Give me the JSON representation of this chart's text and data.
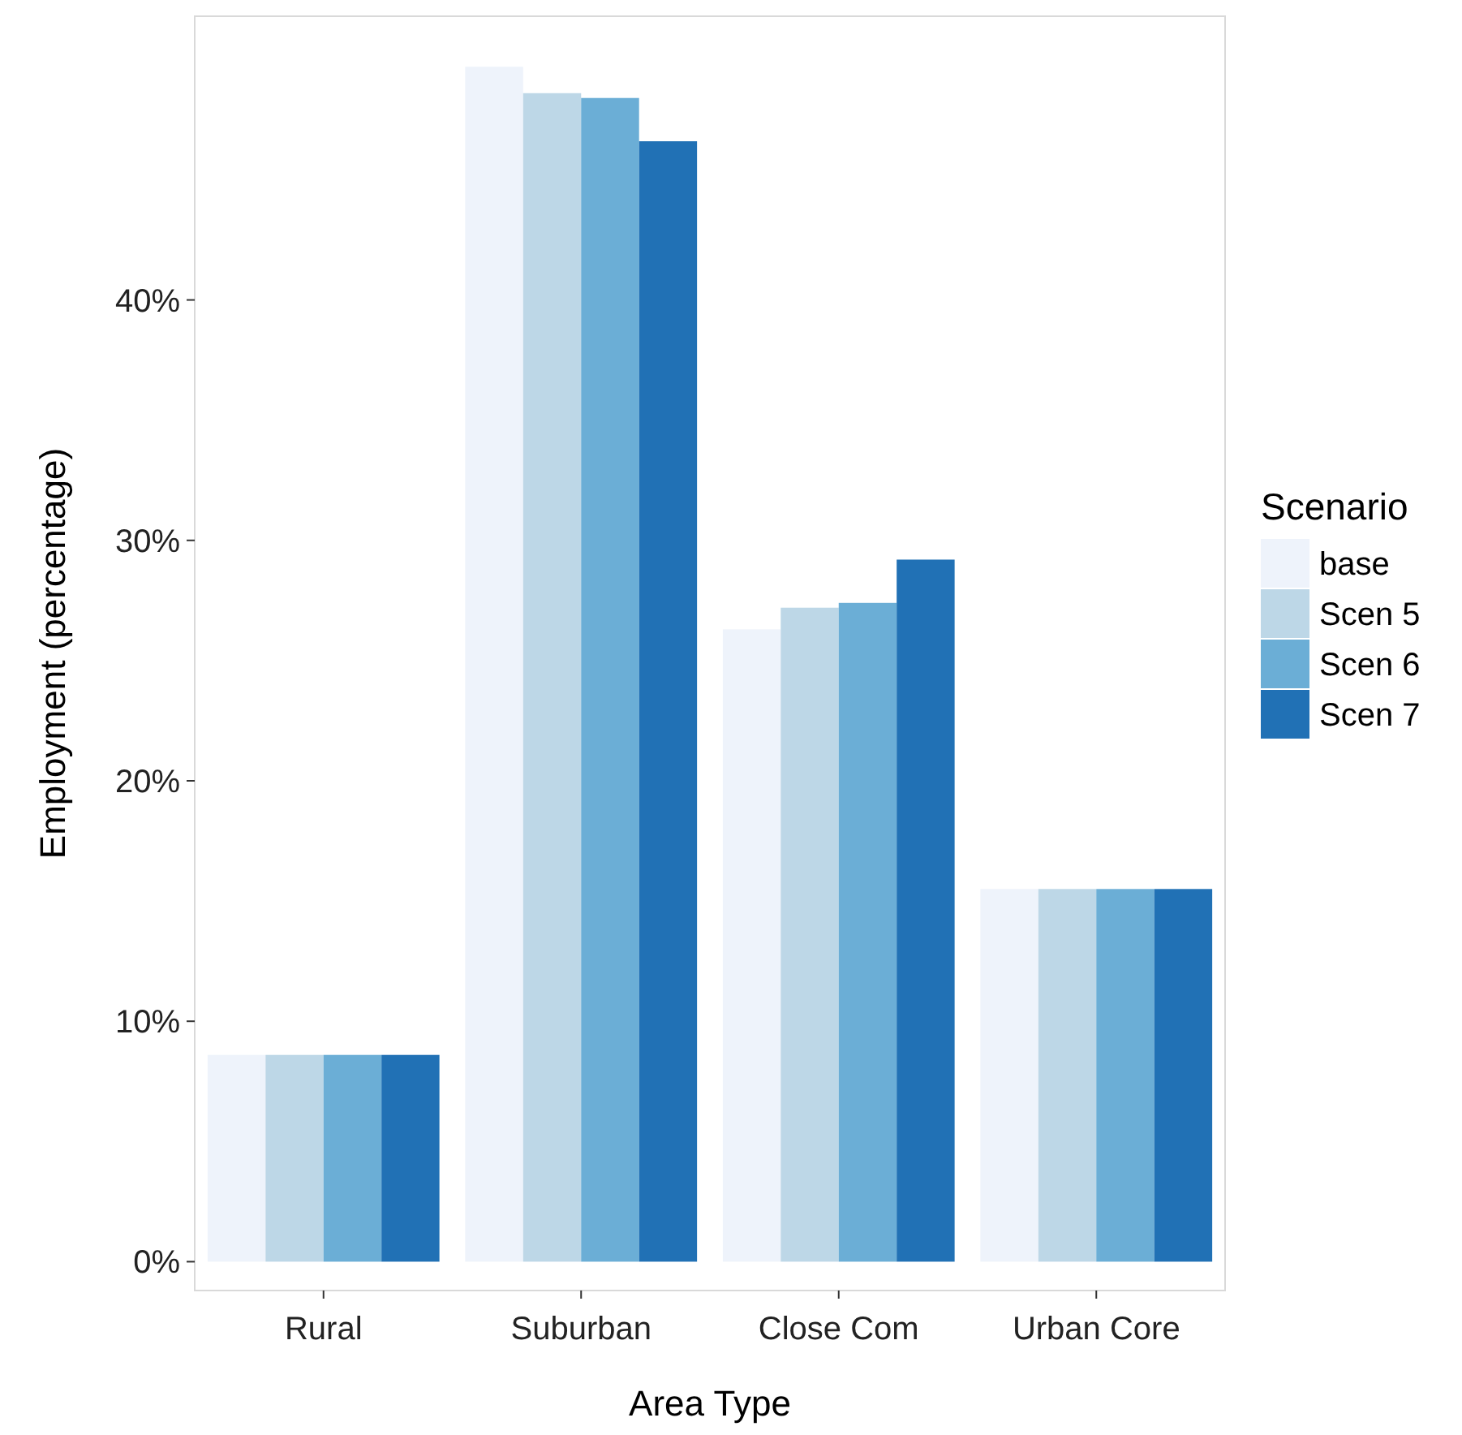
{
  "chart_data": {
    "type": "bar",
    "xlabel": "Area Type",
    "ylabel": "Employment (percentage)",
    "legend_title": "Scenario",
    "legend": "right",
    "categories": [
      "Rural",
      "Suburban",
      "Close Com",
      "Urban Core"
    ],
    "series": [
      {
        "name": "base",
        "color": "#eef3fb",
        "values": [
          8.6,
          49.7,
          26.3,
          15.5
        ]
      },
      {
        "name": "Scen 5",
        "color": "#bdd7e7",
        "values": [
          8.6,
          48.6,
          27.2,
          15.5
        ]
      },
      {
        "name": "Scen 6",
        "color": "#6baed6",
        "values": [
          8.6,
          48.4,
          27.4,
          15.5
        ]
      },
      {
        "name": "Scen 7",
        "color": "#2171b5",
        "values": [
          8.6,
          46.6,
          29.2,
          15.5
        ]
      }
    ],
    "ylim": [
      -1.2,
      51.8
    ],
    "yticks": [
      {
        "value": 0,
        "label": "0%"
      },
      {
        "value": 10,
        "label": "10%"
      },
      {
        "value": 20,
        "label": "20%"
      },
      {
        "value": 30,
        "label": "30%"
      },
      {
        "value": 40,
        "label": "40%"
      }
    ]
  }
}
